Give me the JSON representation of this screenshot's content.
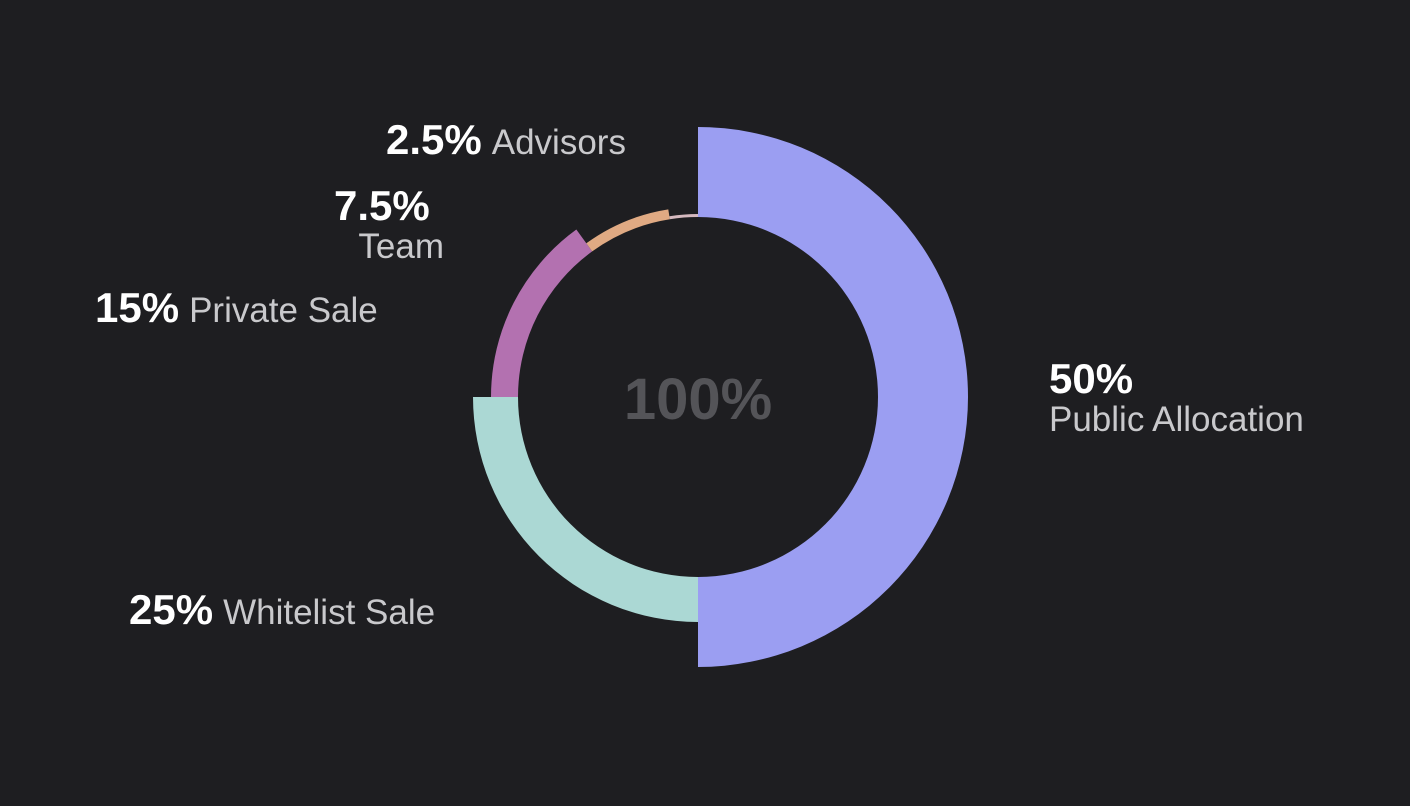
{
  "chart_data": {
    "type": "pie",
    "center_label": "100%",
    "slices": [
      {
        "label": "Public Allocation",
        "value": 50,
        "value_label": "50%",
        "color": "#9b9ef2"
      },
      {
        "label": "Whitelist Sale",
        "value": 25,
        "value_label": "25%",
        "color": "#abd8d4"
      },
      {
        "label": "Private Sale",
        "value": 15,
        "value_label": "15%",
        "color": "#b371b0"
      },
      {
        "label": "Team",
        "value": 7.5,
        "value_label": "7.5%",
        "color": "#e0aa83"
      },
      {
        "label": "Advisors",
        "value": 2.5,
        "value_label": "2.5%",
        "color": "#d5b9bf"
      }
    ]
  }
}
